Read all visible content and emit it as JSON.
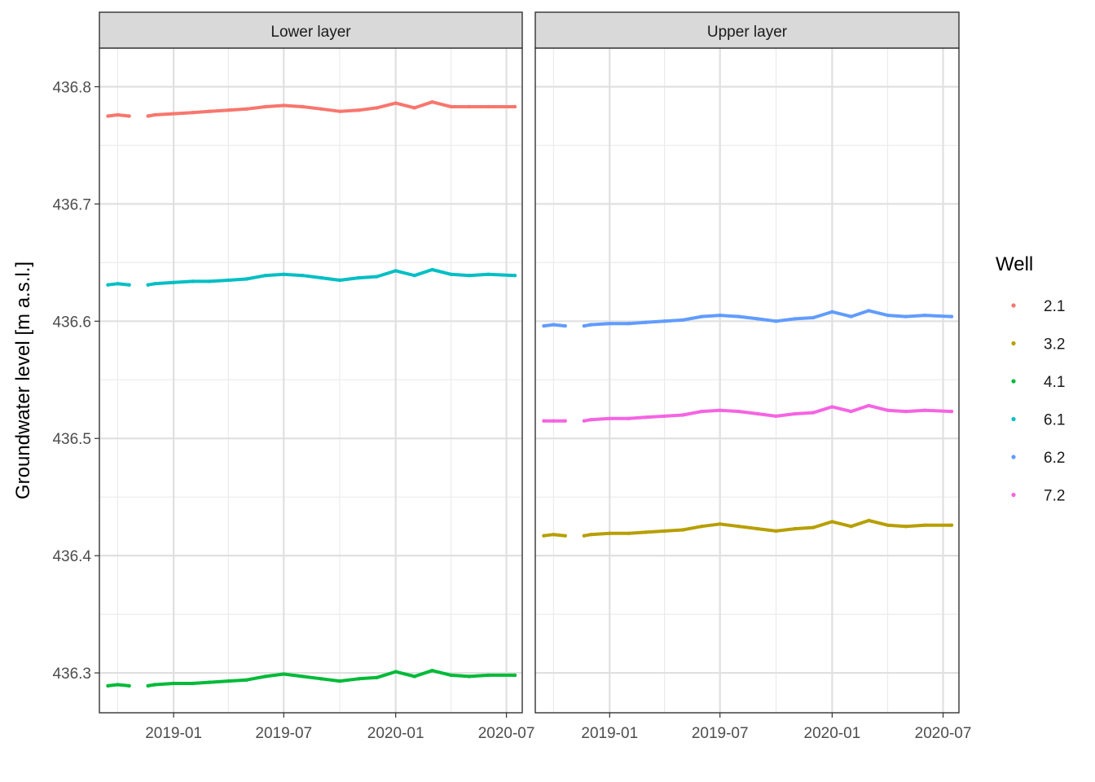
{
  "chart_data": {
    "type": "scatter",
    "ylabel": "Groundwater level [m a.s.l.]",
    "xlabel": "",
    "x_range": [
      "2018-09-01",
      "2020-07-27"
    ],
    "ylim": [
      436.266,
      436.833
    ],
    "y_ticks": [
      436.3,
      436.4,
      436.5,
      436.6,
      436.7,
      436.8
    ],
    "y_tick_labels": [
      "436.3",
      "436.4",
      "436.5",
      "436.6",
      "436.7",
      "436.8"
    ],
    "x_ticks": [
      "2019-01-01",
      "2019-07-01",
      "2020-01-01",
      "2020-07-01"
    ],
    "x_tick_labels": [
      "2019-01",
      "2019-07",
      "2020-01",
      "2020-07"
    ],
    "x_minor_ticks": [
      "2018-10-01",
      "2019-04-01",
      "2019-10-01",
      "2020-04-01"
    ],
    "grid": true,
    "legend": {
      "title": "Well",
      "position": "right",
      "entries": [
        {
          "label": "2.1",
          "color": "#F8766D"
        },
        {
          "label": "3.2",
          "color": "#B79F00"
        },
        {
          "label": "4.1",
          "color": "#00BA38"
        },
        {
          "label": "6.1",
          "color": "#00BFC4"
        },
        {
          "label": "6.2",
          "color": "#619CFF"
        },
        {
          "label": "7.2",
          "color": "#F564E3"
        }
      ]
    },
    "panels": [
      {
        "title": "Lower layer",
        "series": [
          {
            "name": "2.1",
            "color": "#F8766D",
            "x": [
              "2018-09-15",
              "2018-10-01",
              "2018-10-20",
              "2018-11-01",
              "2018-11-20",
              "2018-12-01",
              "2019-01-01",
              "2019-02-01",
              "2019-03-01",
              "2019-04-01",
              "2019-05-01",
              "2019-06-01",
              "2019-07-01",
              "2019-08-01",
              "2019-09-01",
              "2019-10-01",
              "2019-11-01",
              "2019-12-01",
              "2020-01-01",
              "2020-02-01",
              "2020-03-01",
              "2020-04-01",
              "2020-05-01",
              "2020-06-01",
              "2020-07-15"
            ],
            "y": [
              436.775,
              436.776,
              436.775,
              null,
              436.775,
              436.776,
              436.777,
              436.778,
              436.779,
              436.78,
              436.781,
              436.783,
              436.784,
              436.783,
              436.781,
              436.779,
              436.78,
              436.782,
              436.786,
              436.782,
              436.787,
              436.783,
              436.783,
              436.783,
              436.783
            ]
          },
          {
            "name": "6.1",
            "color": "#00BFC4",
            "x": [
              "2018-09-15",
              "2018-10-01",
              "2018-10-20",
              "2018-11-01",
              "2018-11-20",
              "2018-12-01",
              "2019-01-01",
              "2019-02-01",
              "2019-03-01",
              "2019-04-01",
              "2019-05-01",
              "2019-06-01",
              "2019-07-01",
              "2019-08-01",
              "2019-09-01",
              "2019-10-01",
              "2019-11-01",
              "2019-12-01",
              "2020-01-01",
              "2020-02-01",
              "2020-03-01",
              "2020-04-01",
              "2020-05-01",
              "2020-06-01",
              "2020-07-15"
            ],
            "y": [
              436.631,
              436.632,
              436.631,
              null,
              436.631,
              436.632,
              436.633,
              436.634,
              436.634,
              436.635,
              436.636,
              436.639,
              436.64,
              436.639,
              436.637,
              436.635,
              436.637,
              436.638,
              436.643,
              436.639,
              436.644,
              436.64,
              436.639,
              436.64,
              436.639
            ]
          },
          {
            "name": "4.1",
            "color": "#00BA38",
            "x": [
              "2018-09-15",
              "2018-10-01",
              "2018-10-20",
              "2018-11-01",
              "2018-11-20",
              "2018-12-01",
              "2019-01-01",
              "2019-02-01",
              "2019-03-01",
              "2019-04-01",
              "2019-05-01",
              "2019-06-01",
              "2019-07-01",
              "2019-08-01",
              "2019-09-01",
              "2019-10-01",
              "2019-11-01",
              "2019-12-01",
              "2020-01-01",
              "2020-02-01",
              "2020-03-01",
              "2020-04-01",
              "2020-05-01",
              "2020-06-01",
              "2020-07-15"
            ],
            "y": [
              436.289,
              436.29,
              436.289,
              null,
              436.289,
              436.29,
              436.291,
              436.291,
              436.292,
              436.293,
              436.294,
              436.297,
              436.299,
              436.297,
              436.295,
              436.293,
              436.295,
              436.296,
              436.301,
              436.297,
              436.302,
              436.298,
              436.297,
              436.298,
              436.298
            ]
          }
        ]
      },
      {
        "title": "Upper layer",
        "series": [
          {
            "name": "6.2",
            "color": "#619CFF",
            "x": [
              "2018-09-15",
              "2018-10-01",
              "2018-10-20",
              "2018-11-01",
              "2018-11-20",
              "2018-12-01",
              "2019-01-01",
              "2019-02-01",
              "2019-03-01",
              "2019-04-01",
              "2019-05-01",
              "2019-06-01",
              "2019-07-01",
              "2019-08-01",
              "2019-09-01",
              "2019-10-01",
              "2019-11-01",
              "2019-12-01",
              "2020-01-01",
              "2020-02-01",
              "2020-03-01",
              "2020-04-01",
              "2020-05-01",
              "2020-06-01",
              "2020-07-15"
            ],
            "y": [
              436.596,
              436.597,
              436.596,
              null,
              436.596,
              436.597,
              436.598,
              436.598,
              436.599,
              436.6,
              436.601,
              436.604,
              436.605,
              436.604,
              436.602,
              436.6,
              436.602,
              436.603,
              436.608,
              436.604,
              436.609,
              436.605,
              436.604,
              436.605,
              436.604
            ]
          },
          {
            "name": "7.2",
            "color": "#F564E3",
            "x": [
              "2018-09-15",
              "2018-10-01",
              "2018-10-20",
              "2018-11-01",
              "2018-11-20",
              "2018-12-01",
              "2019-01-01",
              "2019-02-01",
              "2019-03-01",
              "2019-04-01",
              "2019-05-01",
              "2019-06-01",
              "2019-07-01",
              "2019-08-01",
              "2019-09-01",
              "2019-10-01",
              "2019-11-01",
              "2019-12-01",
              "2020-01-01",
              "2020-02-01",
              "2020-03-01",
              "2020-04-01",
              "2020-05-01",
              "2020-06-01",
              "2020-07-15"
            ],
            "y": [
              436.515,
              436.515,
              436.515,
              null,
              436.515,
              436.516,
              436.517,
              436.517,
              436.518,
              436.519,
              436.52,
              436.523,
              436.524,
              436.523,
              436.521,
              436.519,
              436.521,
              436.522,
              436.527,
              436.523,
              436.528,
              436.524,
              436.523,
              436.524,
              436.523
            ]
          },
          {
            "name": "3.2",
            "color": "#B79F00",
            "x": [
              "2018-09-15",
              "2018-10-01",
              "2018-10-20",
              "2018-11-01",
              "2018-11-20",
              "2018-12-01",
              "2019-01-01",
              "2019-02-01",
              "2019-03-01",
              "2019-04-01",
              "2019-05-01",
              "2019-06-01",
              "2019-07-01",
              "2019-08-01",
              "2019-09-01",
              "2019-10-01",
              "2019-11-01",
              "2019-12-01",
              "2020-01-01",
              "2020-02-01",
              "2020-03-01",
              "2020-04-01",
              "2020-05-01",
              "2020-06-01",
              "2020-07-15"
            ],
            "y": [
              436.417,
              436.418,
              436.417,
              null,
              436.417,
              436.418,
              436.419,
              436.419,
              436.42,
              436.421,
              436.422,
              436.425,
              436.427,
              436.425,
              436.423,
              436.421,
              436.423,
              436.424,
              436.429,
              436.425,
              436.43,
              436.426,
              436.425,
              436.426,
              436.426
            ]
          }
        ]
      }
    ]
  }
}
